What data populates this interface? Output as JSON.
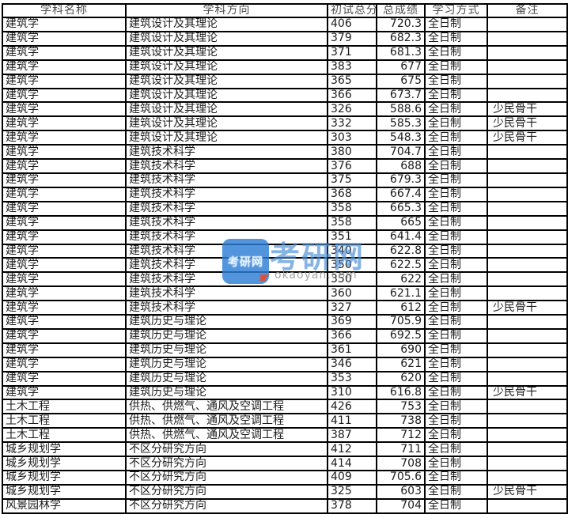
{
  "table": {
    "headers": [
      "学科名称",
      "学科方向",
      "初试总分",
      "总成绩",
      "学习方式",
      "备注"
    ],
    "rows": [
      [
        "建筑学",
        "建筑设计及其理论",
        "406",
        "720.3",
        "全日制",
        ""
      ],
      [
        "建筑学",
        "建筑设计及其理论",
        "379",
        "682.3",
        "全日制",
        ""
      ],
      [
        "建筑学",
        "建筑设计及其理论",
        "371",
        "681.3",
        "全日制",
        ""
      ],
      [
        "建筑学",
        "建筑设计及其理论",
        "383",
        "677",
        "全日制",
        ""
      ],
      [
        "建筑学",
        "建筑设计及其理论",
        "365",
        "675",
        "全日制",
        ""
      ],
      [
        "建筑学",
        "建筑设计及其理论",
        "366",
        "673.7",
        "全日制",
        ""
      ],
      [
        "建筑学",
        "建筑设计及其理论",
        "326",
        "588.6",
        "全日制",
        "少民骨干"
      ],
      [
        "建筑学",
        "建筑设计及其理论",
        "332",
        "585.3",
        "全日制",
        "少民骨干"
      ],
      [
        "建筑学",
        "建筑设计及其理论",
        "303",
        "548.3",
        "全日制",
        "少民骨干"
      ],
      [
        "建筑学",
        "建筑技术科学",
        "380",
        "704.7",
        "全日制",
        ""
      ],
      [
        "建筑学",
        "建筑技术科学",
        "376",
        "688",
        "全日制",
        ""
      ],
      [
        "建筑学",
        "建筑技术科学",
        "375",
        "679.3",
        "全日制",
        ""
      ],
      [
        "建筑学",
        "建筑技术科学",
        "368",
        "667.4",
        "全日制",
        ""
      ],
      [
        "建筑学",
        "建筑技术科学",
        "358",
        "665.3",
        "全日制",
        ""
      ],
      [
        "建筑学",
        "建筑技术科学",
        "358",
        "665",
        "全日制",
        ""
      ],
      [
        "建筑学",
        "建筑技术科学",
        "351",
        "641.4",
        "全日制",
        ""
      ],
      [
        "建筑学",
        "建筑技术科学",
        "340",
        "622.8",
        "全日制",
        ""
      ],
      [
        "建筑学",
        "建筑技术科学",
        "350",
        "622.5",
        "全日制",
        ""
      ],
      [
        "建筑学",
        "建筑技术科学",
        "350",
        "622",
        "全日制",
        ""
      ],
      [
        "建筑学",
        "建筑技术科学",
        "360",
        "621.1",
        "全日制",
        ""
      ],
      [
        "建筑学",
        "建筑技术科学",
        "327",
        "612",
        "全日制",
        "少民骨干"
      ],
      [
        "建筑学",
        "建筑历史与理论",
        "369",
        "705.9",
        "全日制",
        ""
      ],
      [
        "建筑学",
        "建筑历史与理论",
        "366",
        "692.5",
        "全日制",
        ""
      ],
      [
        "建筑学",
        "建筑历史与理论",
        "361",
        "690",
        "全日制",
        ""
      ],
      [
        "建筑学",
        "建筑历史与理论",
        "346",
        "621",
        "全日制",
        ""
      ],
      [
        "建筑学",
        "建筑历史与理论",
        "353",
        "620",
        "全日制",
        ""
      ],
      [
        "建筑学",
        "建筑历史与理论",
        "310",
        "616.8",
        "全日制",
        "少民骨干"
      ],
      [
        "土木工程",
        "供热、供燃气、通风及空调工程",
        "426",
        "753",
        "全日制",
        ""
      ],
      [
        "土木工程",
        "供热、供燃气、通风及空调工程",
        "411",
        "738",
        "全日制",
        ""
      ],
      [
        "土木工程",
        "供热、供燃气、通风及空调工程",
        "387",
        "712",
        "全日制",
        ""
      ],
      [
        "城乡规划学",
        "不区分研究方向",
        "412",
        "711",
        "全日制",
        ""
      ],
      [
        "城乡规划学",
        "不区分研究方向",
        "414",
        "708",
        "全日制",
        ""
      ],
      [
        "城乡规划学",
        "不区分研究方向",
        "409",
        "705.6",
        "全日制",
        ""
      ],
      [
        "城乡规划学",
        "不区分研究方向",
        "325",
        "603",
        "全日制",
        "少民骨干"
      ],
      [
        "风景园林学",
        "不区分研究方向",
        "378",
        "704",
        "全日制",
        ""
      ]
    ]
  },
  "watermark": {
    "icon_text": "考研网",
    "logo_text": "考研网",
    "domain": "okaoyan.com",
    "icon_color": "#2c7ed5",
    "logo_color": "#4a8ed5",
    "accent_color": "#e05030"
  }
}
